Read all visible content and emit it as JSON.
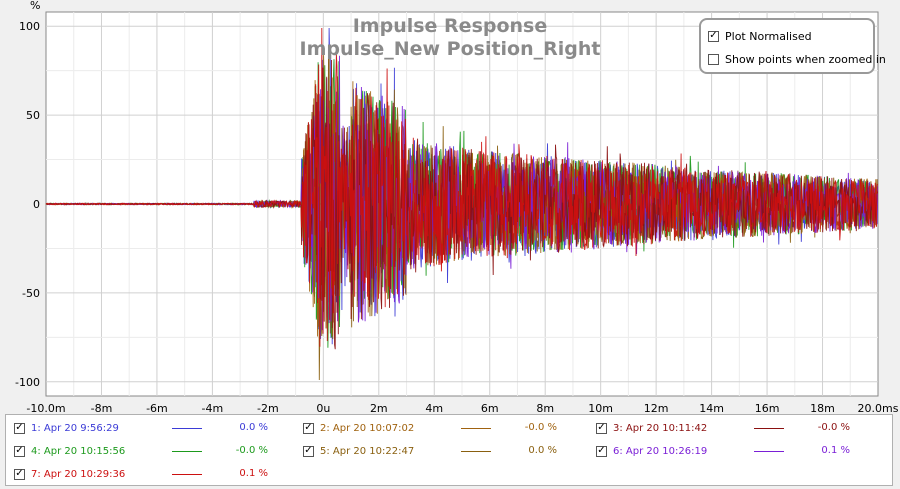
{
  "chart_data": {
    "type": "line",
    "title": "Impulse Response",
    "subtitle": "Impulse_New Position_Right",
    "ylabel": "%",
    "xlabel": "",
    "xlim": [
      -10.0,
      20.0
    ],
    "ylim": [
      -108,
      108
    ],
    "x_ticks": [
      "-10.0m",
      "-8m",
      "-6m",
      "-4m",
      "-2m",
      "0u",
      "2m",
      "4m",
      "6m",
      "8m",
      "10m",
      "12m",
      "14m",
      "16m",
      "18m",
      "20.0ms"
    ],
    "y_ticks": [
      "100",
      "50",
      "0",
      "-50",
      "-100"
    ],
    "grid": true,
    "series": [
      {
        "name": "1: Apr 20 9:56:29",
        "color": "#3b3bd6",
        "value_label": "0.0 %"
      },
      {
        "name": "2: Apr 20 10:07:02",
        "color": "#a0620f",
        "value_label": "-0.0 %"
      },
      {
        "name": "3: Apr 20 10:11:42",
        "color": "#8b1010",
        "value_label": "-0.0 %"
      },
      {
        "name": "4: Apr 20 10:15:56",
        "color": "#1d9a1d",
        "value_label": "-0.0 %"
      },
      {
        "name": "5: Apr 20 10:22:47",
        "color": "#8a6010",
        "value_label": "0.0 %"
      },
      {
        "name": "6: Apr 20 10:26:19",
        "color": "#7a1fd6",
        "value_label": "0.1 %"
      },
      {
        "name": "7: Apr 20 10:29:36",
        "color": "#cc1010",
        "value_label": "0.1 %"
      }
    ]
  },
  "options": {
    "plot_normalised": {
      "label": "Plot Normalised",
      "checked": true
    },
    "show_points": {
      "label": "Show points when zoomed in",
      "checked": false
    }
  }
}
